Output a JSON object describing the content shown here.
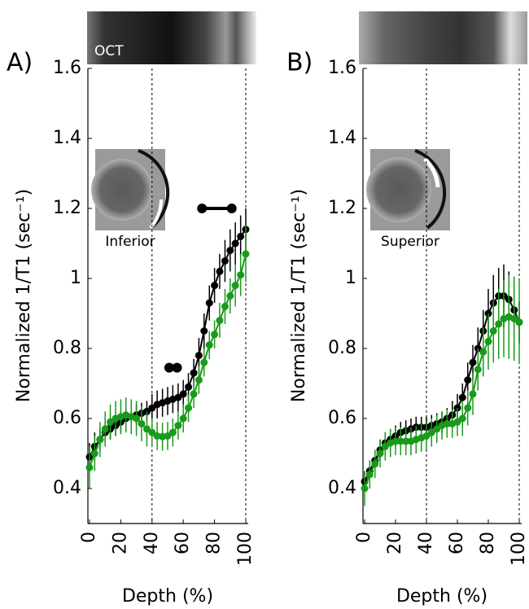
{
  "chart_data": [
    {
      "type": "line",
      "panel_label": "A)",
      "image_label": "OCT",
      "inset_label": "Inferior",
      "ylabel": "Normalized 1/T1 (sec⁻¹)",
      "xlabel": "Depth (%)",
      "xlim": [
        0,
        100
      ],
      "xticks": [
        0,
        20,
        40,
        60,
        80,
        100
      ],
      "ylim": [
        0.3,
        1.6
      ],
      "yticks": [
        0.4,
        0.6,
        0.8,
        1.0,
        1.2,
        1.4,
        1.6
      ],
      "vlines": [
        40,
        100
      ],
      "x": [
        0,
        3.3,
        6.7,
        10,
        13.3,
        16.7,
        20,
        23.3,
        26.7,
        30,
        33.3,
        36.7,
        40,
        43.3,
        46.7,
        50,
        53.3,
        56.7,
        60,
        63.3,
        66.7,
        70,
        73.3,
        76.7,
        80,
        83.3,
        86.7,
        90,
        93.3,
        96.7,
        100
      ],
      "series": [
        {
          "color": "#000000",
          "values": [
            0.49,
            0.52,
            0.54,
            0.56,
            0.57,
            0.58,
            0.59,
            0.6,
            0.605,
            0.61,
            0.615,
            0.62,
            0.63,
            0.64,
            0.645,
            0.65,
            0.655,
            0.66,
            0.67,
            0.69,
            0.73,
            0.78,
            0.85,
            0.93,
            0.98,
            1.02,
            1.05,
            1.08,
            1.1,
            1.12,
            1.14
          ],
          "errors": [
            0.04,
            0.04,
            0.03,
            0.03,
            0.03,
            0.03,
            0.03,
            0.03,
            0.03,
            0.03,
            0.03,
            0.03,
            0.04,
            0.04,
            0.04,
            0.04,
            0.04,
            0.04,
            0.04,
            0.04,
            0.04,
            0.05,
            0.05,
            0.05,
            0.05,
            0.05,
            0.06,
            0.06,
            0.06,
            0.06,
            0.06
          ]
        },
        {
          "color": "#1a9a1a",
          "values": [
            0.46,
            0.5,
            0.54,
            0.57,
            0.59,
            0.6,
            0.605,
            0.61,
            0.605,
            0.6,
            0.585,
            0.57,
            0.56,
            0.55,
            0.548,
            0.55,
            0.56,
            0.58,
            0.6,
            0.63,
            0.67,
            0.71,
            0.76,
            0.81,
            0.84,
            0.88,
            0.92,
            0.95,
            0.98,
            1.01,
            1.07
          ],
          "errors": [
            0.06,
            0.05,
            0.05,
            0.05,
            0.05,
            0.05,
            0.05,
            0.05,
            0.05,
            0.05,
            0.05,
            0.05,
            0.04,
            0.04,
            0.04,
            0.04,
            0.04,
            0.04,
            0.04,
            0.04,
            0.04,
            0.04,
            0.04,
            0.04,
            0.04,
            0.05,
            0.05,
            0.05,
            0.06,
            0.06,
            0.08
          ]
        }
      ],
      "significance": [
        {
          "x": [
            72,
            91
          ],
          "y": 1.2
        },
        {
          "x": [
            51,
            56
          ],
          "y": 0.745
        }
      ]
    },
    {
      "type": "line",
      "panel_label": "B)",
      "inset_label": "Superior",
      "ylabel": "Normalized 1/T1 (sec⁻¹)",
      "xlabel": "Depth (%)",
      "xlim": [
        0,
        100
      ],
      "xticks": [
        0,
        20,
        40,
        60,
        80,
        100
      ],
      "ylim": [
        0.3,
        1.6
      ],
      "yticks": [
        0.4,
        0.6,
        0.8,
        1.0,
        1.2,
        1.4,
        1.6
      ],
      "vlines": [
        40,
        100
      ],
      "x": [
        0,
        3.3,
        6.7,
        10,
        13.3,
        16.7,
        20,
        23.3,
        26.7,
        30,
        33.3,
        36.7,
        40,
        43.3,
        46.7,
        50,
        53.3,
        56.7,
        60,
        63.3,
        66.7,
        70,
        73.3,
        76.7,
        80,
        83.3,
        86.7,
        90,
        93.3,
        96.7,
        100
      ],
      "series": [
        {
          "color": "#000000",
          "values": [
            0.42,
            0.45,
            0.48,
            0.51,
            0.53,
            0.54,
            0.55,
            0.56,
            0.565,
            0.57,
            0.575,
            0.575,
            0.575,
            0.58,
            0.585,
            0.59,
            0.6,
            0.61,
            0.63,
            0.66,
            0.71,
            0.76,
            0.8,
            0.85,
            0.9,
            0.93,
            0.95,
            0.95,
            0.94,
            0.91,
            0.875
          ],
          "errors": [
            0.03,
            0.03,
            0.03,
            0.03,
            0.03,
            0.03,
            0.03,
            0.03,
            0.03,
            0.03,
            0.03,
            0.03,
            0.03,
            0.03,
            0.03,
            0.03,
            0.03,
            0.04,
            0.04,
            0.04,
            0.05,
            0.05,
            0.06,
            0.06,
            0.07,
            0.08,
            0.08,
            0.09,
            0.08,
            0.07,
            0.06
          ]
        },
        {
          "color": "#1a9a1a",
          "values": [
            0.4,
            0.44,
            0.47,
            0.5,
            0.52,
            0.53,
            0.535,
            0.535,
            0.535,
            0.535,
            0.54,
            0.545,
            0.55,
            0.56,
            0.57,
            0.58,
            0.585,
            0.585,
            0.59,
            0.6,
            0.63,
            0.67,
            0.74,
            0.79,
            0.82,
            0.85,
            0.87,
            0.885,
            0.89,
            0.885,
            0.875
          ],
          "errors": [
            0.05,
            0.04,
            0.04,
            0.04,
            0.04,
            0.04,
            0.04,
            0.04,
            0.04,
            0.04,
            0.04,
            0.04,
            0.04,
            0.04,
            0.04,
            0.04,
            0.04,
            0.04,
            0.04,
            0.05,
            0.05,
            0.06,
            0.06,
            0.07,
            0.08,
            0.09,
            0.1,
            0.11,
            0.12,
            0.12,
            0.12
          ]
        }
      ]
    }
  ]
}
